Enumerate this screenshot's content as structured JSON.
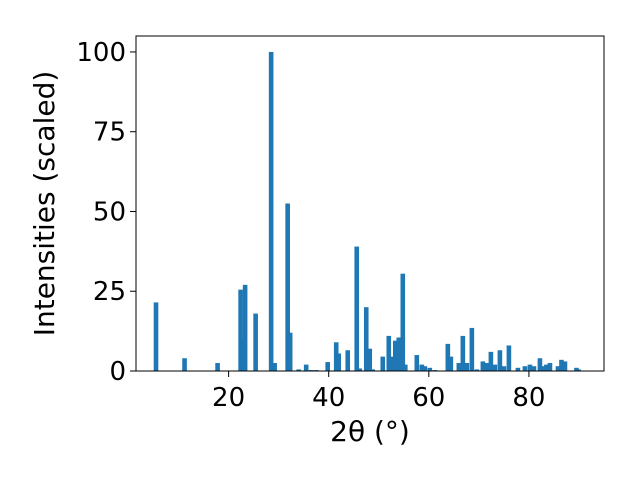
{
  "chart_data": {
    "type": "bar",
    "title": "",
    "xlabel": "2θ (°)",
    "ylabel": "Intensities (scaled)",
    "xlim": [
      1.5,
      95
    ],
    "ylim": [
      0,
      105
    ],
    "xticks": [
      20,
      40,
      60,
      80
    ],
    "yticks": [
      0,
      25,
      50,
      75,
      100
    ],
    "grid": false,
    "legend": false,
    "bar_color": "#1f77b4",
    "series": [
      {
        "x": [
          5.5,
          11.2,
          17.8,
          22.4,
          22.8,
          23.3,
          25.4,
          28.5,
          29.2,
          31.8,
          32.3,
          34.0,
          35.5,
          36.5,
          37.5,
          39.8,
          41.5,
          42.0,
          43.8,
          45.6,
          46.2,
          47.5,
          48.2,
          48.8,
          50.8,
          52.0,
          52.6,
          53.3,
          54.0,
          54.8,
          55.3,
          57.6,
          58.6,
          59.2,
          60.2,
          61.2,
          63.8,
          64.4,
          66.0,
          66.8,
          67.6,
          68.6,
          69.6,
          70.8,
          71.6,
          72.4,
          73.2,
          74.2,
          75.0,
          76.0,
          77.8,
          79.2,
          80.2,
          81.0,
          82.2,
          82.8,
          83.5,
          84.2,
          85.8,
          86.5,
          87.2,
          89.5,
          89.9
        ],
        "y": [
          21.5,
          4.0,
          2.5,
          25.5,
          10.0,
          27.0,
          18.0,
          100.0,
          2.5,
          52.5,
          12.0,
          0.5,
          2.0,
          0.3,
          0.3,
          2.8,
          9.0,
          5.5,
          6.5,
          39.0,
          0.8,
          20.0,
          7.0,
          0.5,
          4.5,
          11.0,
          4.5,
          9.5,
          10.5,
          30.5,
          2.0,
          5.0,
          2.0,
          1.5,
          1.0,
          0.3,
          8.5,
          4.5,
          2.5,
          11.0,
          2.5,
          13.5,
          0.5,
          3.0,
          2.5,
          6.0,
          2.0,
          6.5,
          1.5,
          8.0,
          1.0,
          1.5,
          2.0,
          1.5,
          4.0,
          1.5,
          2.0,
          2.5,
          1.5,
          3.5,
          3.0,
          1.0,
          0.5
        ]
      }
    ]
  }
}
